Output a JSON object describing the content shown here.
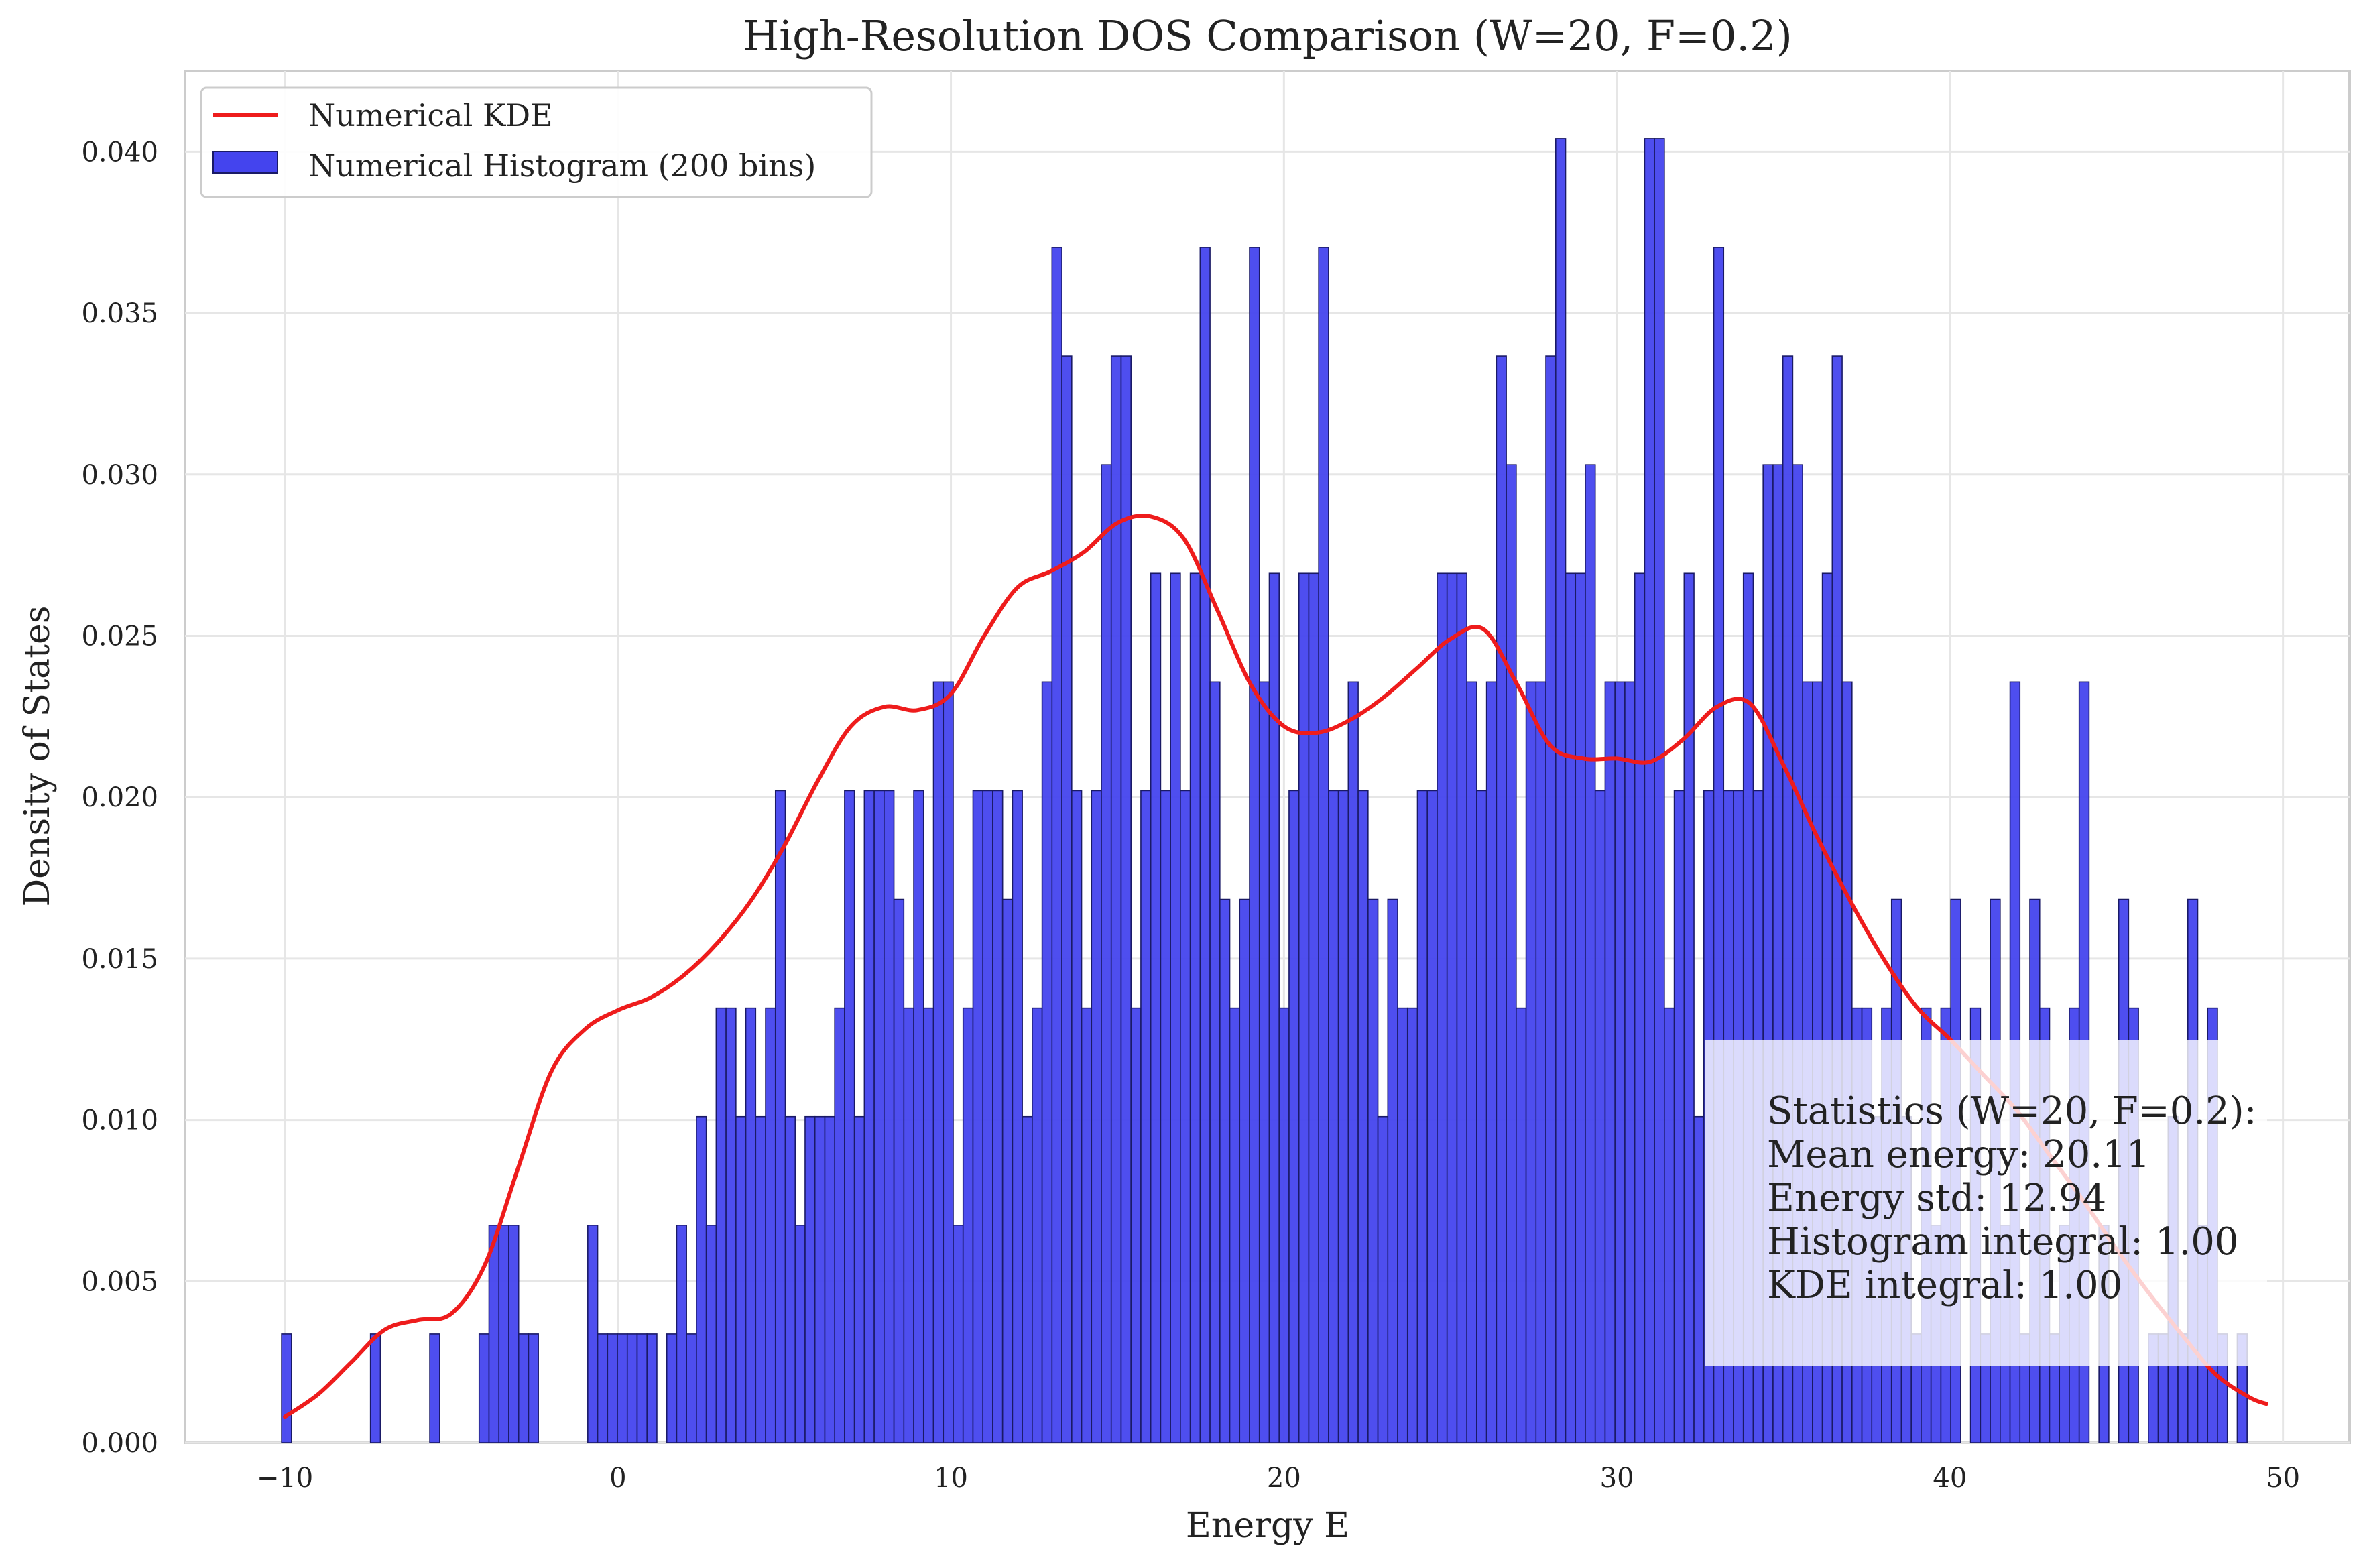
{
  "chart_data": {
    "type": "bar",
    "title": "High-Resolution DOS Comparison (W=20, F=0.2)",
    "xlabel": "Energy E",
    "ylabel": "Density of States",
    "xlim": [
      -13,
      52
    ],
    "ylim": [
      0,
      0.0425
    ],
    "grid": true,
    "legend_placement": "top-left",
    "x_ticks": [
      -10,
      0,
      10,
      20,
      30,
      40,
      50
    ],
    "x_tick_labels": [
      "−10",
      "0",
      "10",
      "20",
      "30",
      "40",
      "50"
    ],
    "y_ticks": [
      0.0,
      0.005,
      0.01,
      0.015,
      0.02,
      0.025,
      0.03,
      0.035,
      0.04
    ],
    "y_tick_labels": [
      "0.000",
      "0.005",
      "0.010",
      "0.015",
      "0.020",
      "0.025",
      "0.030",
      "0.035",
      "0.040"
    ],
    "histogram": {
      "name": "Numerical Histogram (200 bins)",
      "color": "#4444ee",
      "edge_color": "#1a1a66",
      "bin_start": -10.1,
      "bin_width": 0.2966,
      "counts": [
        1,
        0,
        0,
        0,
        0,
        0,
        0,
        0,
        0,
        1,
        0,
        0,
        0,
        0,
        0,
        1,
        0,
        0,
        0,
        0,
        1,
        2,
        2,
        2,
        1,
        1,
        0,
        0,
        0,
        0,
        0,
        2,
        1,
        1,
        1,
        1,
        1,
        1,
        0,
        1,
        2,
        1,
        3,
        2,
        4,
        4,
        3,
        4,
        3,
        4,
        6,
        3,
        2,
        3,
        3,
        3,
        4,
        6,
        3,
        6,
        6,
        6,
        5,
        4,
        6,
        4,
        7,
        7,
        2,
        4,
        6,
        6,
        6,
        5,
        6,
        3,
        4,
        7,
        11,
        10,
        6,
        4,
        6,
        9,
        10,
        10,
        4,
        6,
        8,
        6,
        8,
        6,
        8,
        11,
        7,
        5,
        4,
        5,
        11,
        7,
        8,
        4,
        6,
        8,
        8,
        11,
        6,
        6,
        7,
        6,
        5,
        3,
        5,
        4,
        4,
        6,
        6,
        8,
        8,
        8,
        7,
        6,
        7,
        10,
        9,
        4,
        7,
        7,
        10,
        12,
        8,
        8,
        9,
        6,
        7,
        7,
        7,
        8,
        12,
        12,
        4,
        6,
        8,
        3,
        6,
        11,
        6,
        6,
        8,
        6,
        9,
        9,
        10,
        9,
        7,
        7,
        8,
        10,
        7,
        4,
        4,
        3,
        4,
        5,
        3,
        1,
        4,
        2,
        4,
        5,
        0,
        4,
        1,
        5,
        2,
        7,
        1,
        5,
        4,
        1,
        2,
        4,
        7,
        0,
        2,
        0,
        5,
        4,
        0,
        1,
        1,
        3,
        1,
        5,
        2,
        4,
        1,
        0,
        1,
        0
      ],
      "scale": 0.003367
    },
    "kde": {
      "name": "Numerical KDE",
      "color": "#ee1c1c",
      "x": [
        -10,
        -9,
        -8,
        -7,
        -6,
        -5,
        -4,
        -3,
        -2,
        -1,
        0,
        1,
        2,
        3,
        4,
        5,
        6,
        7,
        8,
        9,
        10,
        11,
        12,
        13,
        14,
        15,
        16,
        17,
        18,
        19,
        20,
        21,
        22,
        23,
        24,
        25,
        26,
        27,
        28,
        29,
        30,
        31,
        32,
        33,
        34,
        35,
        36,
        37,
        38,
        39,
        40,
        41,
        42,
        43,
        44,
        45,
        46,
        47,
        48,
        49,
        49.5
      ],
      "y": [
        0.0008,
        0.0015,
        0.0025,
        0.0035,
        0.0038,
        0.004,
        0.0055,
        0.0085,
        0.0115,
        0.0128,
        0.0134,
        0.0138,
        0.0145,
        0.0155,
        0.0168,
        0.0185,
        0.0205,
        0.0222,
        0.0228,
        0.0227,
        0.0232,
        0.025,
        0.0265,
        0.027,
        0.0276,
        0.0285,
        0.0287,
        0.028,
        0.0258,
        0.0235,
        0.0222,
        0.022,
        0.0224,
        0.0231,
        0.024,
        0.0249,
        0.0252,
        0.0235,
        0.0216,
        0.0212,
        0.0212,
        0.0211,
        0.0218,
        0.0228,
        0.0229,
        0.021,
        0.0188,
        0.0168,
        0.015,
        0.0135,
        0.0125,
        0.0114,
        0.0103,
        0.0089,
        0.0075,
        0.006,
        0.0046,
        0.0033,
        0.0021,
        0.0014,
        0.0012
      ]
    },
    "annotation": {
      "lines": [
        "Statistics (W=20, F=0.2):",
        "Mean energy: 20.11",
        "Energy std: 12.94",
        "Histogram integral: 1.00",
        "KDE integral: 1.00"
      ]
    }
  }
}
